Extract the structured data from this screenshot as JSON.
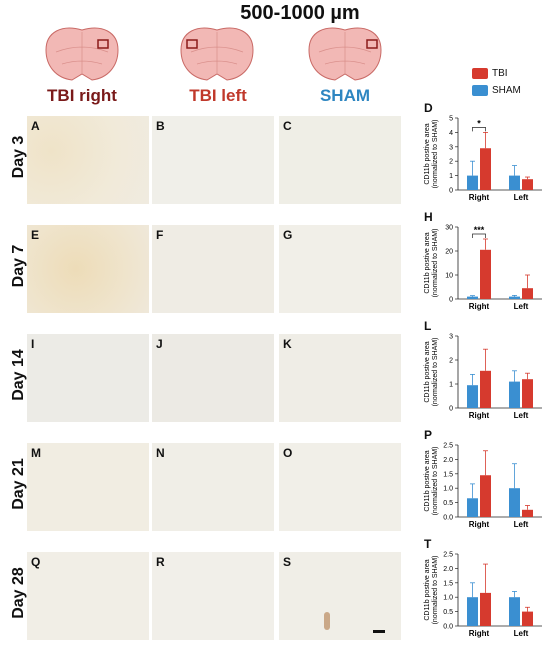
{
  "header": {
    "title": "500-1000 µm",
    "columns": [
      {
        "label": "TBI right",
        "color": "#7a1a1a"
      },
      {
        "label": "TBI left",
        "color": "#c0392b"
      },
      {
        "label": "SHAM",
        "color": "#2e86c1"
      }
    ]
  },
  "legend": [
    {
      "label": "TBI",
      "color": "#d63a2e"
    },
    {
      "label": "SHAM",
      "color": "#3a8fd1"
    }
  ],
  "rows": [
    {
      "day": "Day 3",
      "panels": [
        "A",
        "B",
        "C"
      ],
      "chart_letter": "D"
    },
    {
      "day": "Day 7",
      "panels": [
        "E",
        "F",
        "G"
      ],
      "chart_letter": "H"
    },
    {
      "day": "Day 14",
      "panels": [
        "I",
        "J",
        "K"
      ],
      "chart_letter": "L"
    },
    {
      "day": "Day 21",
      "panels": [
        "M",
        "N",
        "O"
      ],
      "chart_letter": "P"
    },
    {
      "day": "Day 28",
      "panels": [
        "Q",
        "R",
        "S"
      ],
      "chart_letter": "T"
    }
  ],
  "chart_data": [
    {
      "type": "bar",
      "categories": [
        "Right",
        "Left"
      ],
      "ylabel": "CD11b postive area (normalized to SHAM)",
      "ylim": [
        0,
        5
      ],
      "yticks": [
        0,
        1,
        2,
        3,
        4,
        5
      ],
      "series": [
        {
          "name": "SHAM",
          "values": [
            1.0,
            1.0
          ],
          "err": [
            1.0,
            0.7
          ]
        },
        {
          "name": "TBI",
          "values": [
            2.9,
            0.75
          ],
          "err": [
            1.1,
            0.15
          ]
        }
      ],
      "annotation": "*"
    },
    {
      "type": "bar",
      "categories": [
        "Right",
        "Left"
      ],
      "ylabel": "CD11b postive area (normalized to SHAM)",
      "ylim": [
        0,
        30
      ],
      "yticks": [
        0,
        10,
        20,
        30
      ],
      "series": [
        {
          "name": "SHAM",
          "values": [
            1.0,
            1.0
          ],
          "err": [
            0.4,
            0.5
          ]
        },
        {
          "name": "TBI",
          "values": [
            20.5,
            4.5
          ],
          "err": [
            4.5,
            5.5
          ]
        }
      ],
      "annotation": "***"
    },
    {
      "type": "bar",
      "categories": [
        "Right",
        "Left"
      ],
      "ylabel": "CD11b postive area (normalized to SHAM)",
      "ylim": [
        0,
        3
      ],
      "yticks": [
        0,
        1,
        2,
        3
      ],
      "series": [
        {
          "name": "SHAM",
          "values": [
            0.95,
            1.1
          ],
          "err": [
            0.45,
            0.45
          ]
        },
        {
          "name": "TBI",
          "values": [
            1.55,
            1.2
          ],
          "err": [
            0.9,
            0.25
          ]
        }
      ],
      "annotation": ""
    },
    {
      "type": "bar",
      "categories": [
        "Right",
        "Left"
      ],
      "ylabel": "CD11b postive area (normalized to SHAM)",
      "ylim": [
        0,
        2.5
      ],
      "yticks": [
        0.0,
        0.5,
        1.0,
        1.5,
        2.0,
        2.5
      ],
      "series": [
        {
          "name": "SHAM",
          "values": [
            0.65,
            1.0
          ],
          "err": [
            0.5,
            0.85
          ]
        },
        {
          "name": "TBI",
          "values": [
            1.45,
            0.25
          ],
          "err": [
            0.85,
            0.15
          ]
        }
      ],
      "annotation": ""
    },
    {
      "type": "bar",
      "categories": [
        "Right",
        "Left"
      ],
      "ylabel": "CD11b postive area (normalized to SHAM)",
      "ylim": [
        0,
        2.5
      ],
      "yticks": [
        0.0,
        0.5,
        1.0,
        1.5,
        2.0,
        2.5
      ],
      "series": [
        {
          "name": "SHAM",
          "values": [
            1.0,
            1.0
          ],
          "err": [
            0.5,
            0.2
          ]
        },
        {
          "name": "TBI",
          "values": [
            1.15,
            0.5
          ],
          "err": [
            1.0,
            0.15
          ]
        }
      ],
      "annotation": ""
    }
  ]
}
